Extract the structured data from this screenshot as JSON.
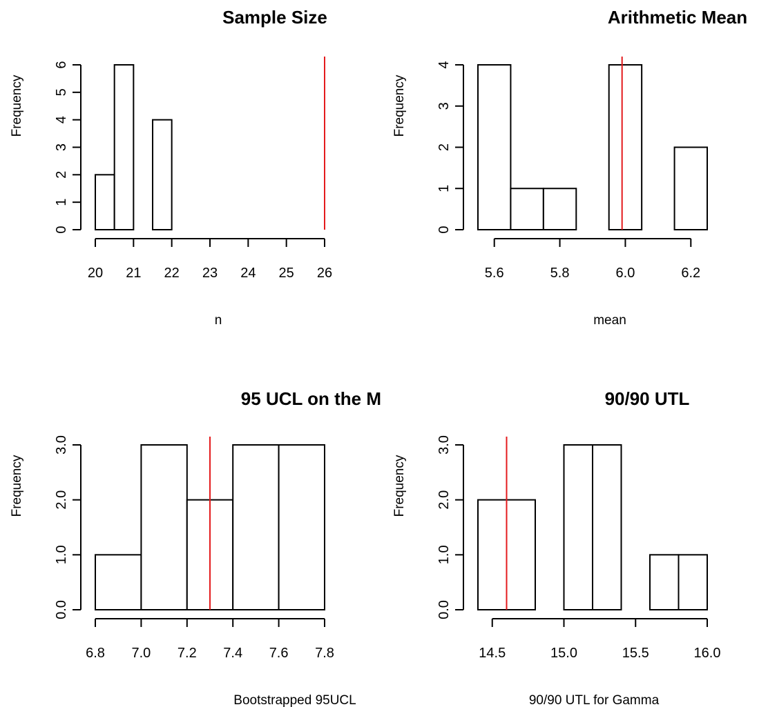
{
  "chart_data": [
    {
      "type": "bar",
      "title": "Sample Size",
      "xlabel": "n",
      "ylabel": "Frequency",
      "bins": [
        [
          20,
          20.5
        ],
        [
          20.5,
          21
        ],
        [
          21,
          21.5
        ],
        [
          21.5,
          22
        ]
      ],
      "values": [
        2,
        6,
        0,
        4
      ],
      "xlim": [
        20,
        26
      ],
      "ylim": [
        0,
        6
      ],
      "xticks": [
        20,
        21,
        22,
        23,
        24,
        25,
        26
      ],
      "xtick_labels": [
        "20",
        "21",
        "22",
        "23",
        "24",
        "25",
        "26"
      ],
      "yticks": [
        0,
        1,
        2,
        3,
        4,
        5,
        6
      ],
      "ytick_labels": [
        "0",
        "1",
        "2",
        "3",
        "4",
        "5",
        "6"
      ],
      "reference_line": 26,
      "reference_color": "#e41a1c"
    },
    {
      "type": "bar",
      "title": "Arithmetic Mean",
      "xlabel": "mean",
      "ylabel": "Frequency",
      "bins": [
        [
          5.55,
          5.65
        ],
        [
          5.65,
          5.75
        ],
        [
          5.75,
          5.85
        ],
        [
          5.85,
          5.95
        ],
        [
          5.95,
          6.05
        ],
        [
          6.05,
          6.15
        ],
        [
          6.15,
          6.25
        ]
      ],
      "values": [
        4,
        1,
        1,
        0,
        4,
        0,
        2
      ],
      "xlim": [
        5.55,
        6.25
      ],
      "ylim": [
        0,
        4
      ],
      "xticks": [
        5.6,
        5.8,
        6.0,
        6.2
      ],
      "xtick_labels": [
        "5.6",
        "5.8",
        "6.0",
        "6.2"
      ],
      "yticks": [
        0,
        1,
        2,
        3,
        4
      ],
      "ytick_labels": [
        "0",
        "1",
        "2",
        "3",
        "4"
      ],
      "reference_line": 5.99,
      "reference_color": "#e41a1c"
    },
    {
      "type": "bar",
      "title": "95 UCL on the M",
      "xlabel": "Bootstrapped 95UCL",
      "ylabel": "Frequency",
      "bins": [
        [
          6.8,
          7.0
        ],
        [
          7.0,
          7.2
        ],
        [
          7.2,
          7.4
        ],
        [
          7.4,
          7.6
        ],
        [
          7.6,
          7.8
        ]
      ],
      "values": [
        1,
        3,
        2,
        3,
        3
      ],
      "xlim": [
        6.8,
        7.8
      ],
      "ylim": [
        0,
        3
      ],
      "xticks": [
        6.8,
        7.0,
        7.2,
        7.4,
        7.6,
        7.8
      ],
      "xtick_labels": [
        "6.8",
        "7.0",
        "7.2",
        "7.4",
        "7.6",
        "7.8"
      ],
      "yticks": [
        0,
        1,
        2,
        3
      ],
      "ytick_labels": [
        "0.0",
        "1.0",
        "2.0",
        "3.0"
      ],
      "reference_line": 7.3,
      "reference_color": "#e41a1c"
    },
    {
      "type": "bar",
      "title": "90/90 UTL",
      "xlabel": "90/90 UTL for Gamma",
      "ylabel": "Frequency",
      "bins": [
        [
          14.4,
          14.8
        ],
        [
          14.8,
          15.0
        ],
        [
          15.0,
          15.2
        ],
        [
          15.2,
          15.4
        ],
        [
          15.4,
          15.6
        ],
        [
          15.6,
          15.8
        ],
        [
          15.8,
          16.0
        ]
      ],
      "values": [
        2,
        0,
        3,
        3,
        0,
        1,
        1
      ],
      "xlim": [
        14.4,
        16.0
      ],
      "ylim": [
        0,
        3
      ],
      "xticks": [
        14.5,
        15.0,
        15.5,
        16.0
      ],
      "xtick_labels": [
        "14.5",
        "15.0",
        "15.5",
        "16.0"
      ],
      "yticks": [
        0,
        1,
        2,
        3
      ],
      "ytick_labels": [
        "0.0",
        "1.0",
        "2.0",
        "3.0"
      ],
      "reference_line": 14.6,
      "reference_color": "#e41a1c"
    }
  ]
}
